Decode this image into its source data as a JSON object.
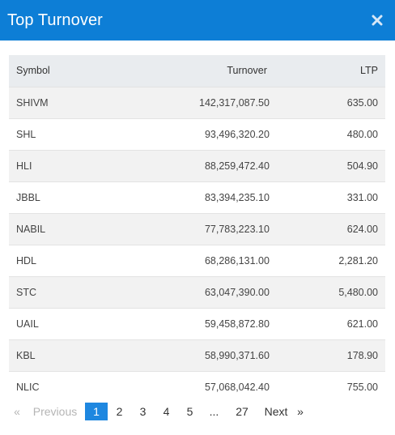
{
  "header": {
    "title": "Top Turnover",
    "close_icon": "close-icon"
  },
  "table": {
    "columns": {
      "symbol": "Symbol",
      "turnover": "Turnover",
      "ltp": "LTP"
    },
    "rows": [
      {
        "symbol": "SHIVM",
        "turnover": "142,317,087.50",
        "ltp": "635.00"
      },
      {
        "symbol": "SHL",
        "turnover": "93,496,320.20",
        "ltp": "480.00"
      },
      {
        "symbol": "HLI",
        "turnover": "88,259,472.40",
        "ltp": "504.90"
      },
      {
        "symbol": "JBBL",
        "turnover": "83,394,235.10",
        "ltp": "331.00"
      },
      {
        "symbol": "NABIL",
        "turnover": "77,783,223.10",
        "ltp": "624.00"
      },
      {
        "symbol": "HDL",
        "turnover": "68,286,131.00",
        "ltp": "2,281.20"
      },
      {
        "symbol": "STC",
        "turnover": "63,047,390.00",
        "ltp": "5,480.00"
      },
      {
        "symbol": "UAIL",
        "turnover": "59,458,872.80",
        "ltp": "621.00"
      },
      {
        "symbol": "KBL",
        "turnover": "58,990,371.60",
        "ltp": "178.90"
      },
      {
        "symbol": "NLIC",
        "turnover": "57,068,042.40",
        "ltp": "755.00"
      }
    ]
  },
  "pagination": {
    "first": "«",
    "previous": "Previous",
    "pages": [
      "1",
      "2",
      "3",
      "4",
      "5"
    ],
    "ellipsis": "...",
    "last_page": "27",
    "next": "Next",
    "last": "»",
    "current": "1"
  },
  "colors": {
    "header_bg": "#0d7ed6",
    "active_page": "#1e87e0"
  }
}
